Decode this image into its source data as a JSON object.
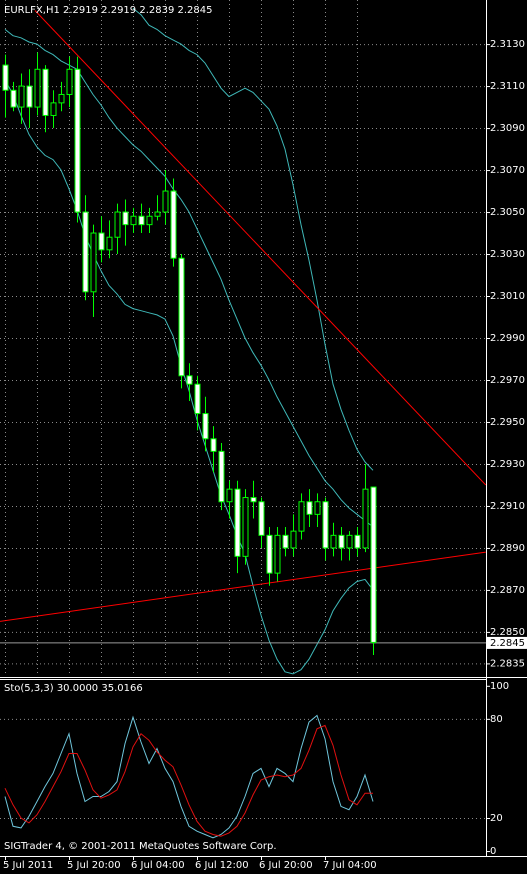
{
  "chart_data": [
    {
      "type": "candlestick",
      "title": "EURLFX,H1  2.2919 2.2919 2.2839 2.2845",
      "categories": [
        "5 Jul 2011",
        null,
        null,
        null,
        null,
        null,
        null,
        null,
        "5 Jul 20:00",
        null,
        null,
        null,
        null,
        null,
        null,
        null,
        "6 Jul 04:00",
        null,
        null,
        null,
        null,
        null,
        null,
        null,
        "6 Jul 12:00",
        null,
        null,
        null,
        null,
        null,
        null,
        null,
        "6 Jul 20:00",
        null,
        null,
        null,
        null,
        null,
        null,
        null,
        "7 Jul 04:00",
        null,
        null,
        null,
        null,
        null,
        null
      ],
      "open": [
        2.312,
        2.3108,
        2.31,
        2.311,
        2.31,
        2.3118,
        2.3096,
        2.3102,
        2.3106,
        2.3118,
        2.305,
        2.3012,
        2.304,
        2.3032,
        2.3038,
        2.305,
        2.3044,
        2.3048,
        2.3044,
        2.3048,
        2.305,
        2.306,
        2.3028,
        2.2972,
        2.2968,
        2.2954,
        2.2942,
        2.2936,
        2.2912,
        2.2918,
        2.2886,
        2.2914,
        2.2912,
        2.2896,
        2.2878,
        2.2896,
        2.289,
        2.2898,
        2.2912,
        2.2906,
        2.2912,
        2.289,
        2.2896,
        2.289,
        2.2896,
        2.289,
        2.2919
      ],
      "high": [
        2.3125,
        2.3112,
        2.3116,
        2.3118,
        2.3126,
        2.312,
        2.3108,
        2.3112,
        2.3124,
        2.3124,
        2.3058,
        2.3044,
        2.3048,
        2.3046,
        2.3054,
        2.3056,
        2.3052,
        2.3054,
        2.3052,
        2.3058,
        2.307,
        2.3066,
        2.303,
        2.2978,
        2.2972,
        2.2962,
        2.2948,
        2.294,
        2.2922,
        2.2922,
        2.2918,
        2.2922,
        2.2914,
        2.29,
        2.29,
        2.29,
        2.2906,
        2.2916,
        2.2918,
        2.2916,
        2.2914,
        2.2902,
        2.29,
        2.2898,
        2.29,
        2.293,
        2.2919
      ],
      "low": [
        2.3095,
        2.3098,
        2.3092,
        2.309,
        2.3096,
        2.3088,
        2.309,
        2.3098,
        2.31,
        2.3045,
        2.3008,
        2.3,
        2.3026,
        2.3028,
        2.303,
        2.3034,
        2.304,
        2.304,
        2.304,
        2.3046,
        2.3044,
        2.3024,
        2.2966,
        2.296,
        2.2946,
        2.2936,
        2.2926,
        2.2908,
        2.2904,
        2.2878,
        2.2882,
        2.2904,
        2.289,
        2.2872,
        2.2874,
        2.2886,
        2.2886,
        2.2894,
        2.29,
        2.29,
        2.2884,
        2.2886,
        2.2884,
        2.2884,
        2.2886,
        2.2888,
        2.2839
      ],
      "close": [
        2.3108,
        2.31,
        2.311,
        2.31,
        2.3118,
        2.3096,
        2.3102,
        2.3106,
        2.3118,
        2.305,
        2.3012,
        2.304,
        2.3032,
        2.3038,
        2.305,
        2.3044,
        2.3048,
        2.3044,
        2.3048,
        2.305,
        2.306,
        2.3028,
        2.2972,
        2.2968,
        2.2954,
        2.2942,
        2.2936,
        2.2912,
        2.2918,
        2.2886,
        2.2914,
        2.2912,
        2.2896,
        2.2878,
        2.2896,
        2.289,
        2.2898,
        2.2912,
        2.2906,
        2.2912,
        2.289,
        2.2896,
        2.289,
        2.2896,
        2.289,
        2.2918,
        2.2845
      ],
      "up_color": "#000000",
      "down_color": "#ffffff",
      "wick_color": "#00ff00",
      "series": [
        {
          "color": "#3fb8b8",
          "values": [
            null,
            null,
            null,
            null,
            null,
            null,
            null,
            null,
            null,
            null,
            null,
            null,
            null,
            null,
            null,
            null,
            2.3147,
            2.3144,
            2.3139,
            2.3137,
            2.3134,
            2.3132,
            2.313,
            2.3127,
            2.3125,
            2.3121,
            2.3115,
            2.3109,
            2.3105,
            2.3107,
            2.3109,
            2.3107,
            2.3103,
            2.3099,
            2.3091,
            2.308,
            2.3063,
            2.3044,
            2.3027,
            2.3008,
            2.2987,
            2.2968,
            2.2956,
            2.2946,
            2.2937,
            2.2931,
            2.2927
          ]
        },
        {
          "color": "#3fb8b8",
          "values": [
            2.3137,
            2.3134,
            2.3133,
            2.3131,
            2.313,
            2.3127,
            2.3125,
            2.3122,
            2.312,
            2.3118,
            2.3112,
            2.3106,
            2.3101,
            2.3095,
            2.309,
            2.3086,
            2.3082,
            2.3079,
            2.3075,
            2.3071,
            2.3067,
            2.3061,
            2.3056,
            2.305,
            2.3042,
            2.3034,
            2.3026,
            2.3018,
            2.3008,
            2.2999,
            2.299,
            2.2983,
            2.2977,
            2.297,
            2.2962,
            2.2955,
            2.2948,
            2.2941,
            2.2934,
            2.2928,
            2.2922,
            2.2918,
            2.2913,
            2.2909,
            2.2906,
            2.2903,
            2.29
          ]
        },
        {
          "color": "#3fb8b8",
          "values": [
            2.3113,
            2.3106,
            2.3096,
            2.3087,
            2.3081,
            2.3077,
            2.3075,
            2.307,
            2.3061,
            2.3051,
            2.3039,
            2.303,
            2.3022,
            2.3015,
            2.3011,
            2.3006,
            2.3004,
            2.3003,
            2.3002,
            2.3001,
            2.2999,
            2.2991,
            2.2977,
            2.2965,
            2.2951,
            2.2939,
            2.2927,
            2.2915,
            2.2906,
            2.2896,
            2.2887,
            2.2872,
            2.2858,
            2.2846,
            2.2837,
            2.2831,
            2.283,
            2.2832,
            2.2837,
            2.2844,
            2.2851,
            2.286,
            2.2866,
            2.2871,
            2.2874,
            2.2875,
            2.287
          ]
        }
      ],
      "trendlines": [
        {
          "color": "#ff0000",
          "x": [
            3.75,
            60.1
          ],
          "values": [
            2.3146,
            2.292
          ]
        },
        {
          "color": "#ff0000",
          "x": [
            -0.625,
            60.1
          ],
          "values": [
            2.2855,
            2.2888
          ]
        }
      ],
      "current_price": {
        "value": 2.2845,
        "label": "2.2845"
      },
      "ylim": [
        2.2829,
        2.3151
      ],
      "yticks": [
        {
          "value": 2.313,
          "label": "2.3130"
        },
        {
          "value": 2.311,
          "label": "2.3110"
        },
        {
          "value": 2.309,
          "label": "2.3090"
        },
        {
          "value": 2.307,
          "label": "2.3070"
        },
        {
          "value": 2.305,
          "label": "2.3050"
        },
        {
          "value": 2.303,
          "label": "2.3030"
        },
        {
          "value": 2.301,
          "label": "2.3010"
        },
        {
          "value": 2.299,
          "label": "2.2990"
        },
        {
          "value": 2.297,
          "label": "2.2970"
        },
        {
          "value": 2.295,
          "label": "2.2950"
        },
        {
          "value": 2.293,
          "label": "2.2930"
        },
        {
          "value": 2.291,
          "label": "2.2910"
        },
        {
          "value": 2.289,
          "label": "2.2890"
        },
        {
          "value": 2.287,
          "label": "2.2870"
        },
        {
          "value": 2.285,
          "label": "2.2850"
        },
        2.2835
      ],
      "grid": true
    },
    {
      "type": "line",
      "title": "Sto(5,3,3) 30.0000 35.0166",
      "series": [
        {
          "color": "#6fc6dc",
          "values": [
            33,
            15,
            14,
            21,
            30,
            39,
            47,
            59,
            71,
            47,
            30,
            33,
            33,
            36,
            42,
            65,
            81,
            66,
            53,
            62,
            50,
            42,
            27,
            15,
            12,
            10,
            8,
            10,
            14,
            21,
            33,
            47,
            50,
            39,
            50,
            47,
            42,
            62,
            78,
            82,
            68,
            42,
            27,
            25,
            33,
            46,
            30
          ]
        },
        {
          "color": "#e01010",
          "values": [
            38,
            28,
            20,
            17,
            22,
            30,
            39,
            48,
            59,
            59,
            49,
            37,
            32,
            34,
            37,
            48,
            63,
            71,
            67,
            60,
            55,
            51,
            40,
            28,
            18,
            12,
            10,
            9,
            11,
            15,
            23,
            34,
            43,
            45,
            46,
            45,
            46,
            50,
            61,
            74,
            76,
            64,
            46,
            31,
            28,
            35,
            35.0166
          ]
        }
      ],
      "ylim": [
        -3,
        103.5
      ],
      "yticks": [
        100,
        80,
        20,
        0
      ],
      "levels": [
        80,
        20
      ]
    }
  ],
  "footer": "SIGTrader 4, © 2001-2011 MetaQuotes Software Corp."
}
